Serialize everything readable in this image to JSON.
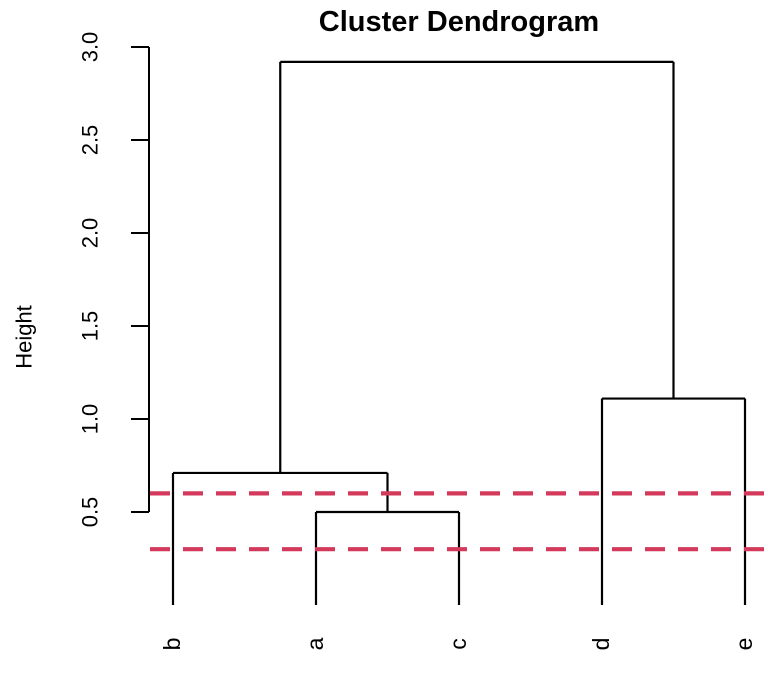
{
  "chart_data": {
    "type": "dendrogram",
    "title": "Cluster Dendrogram",
    "ylabel": "Height",
    "xlabel": "",
    "leaves": [
      "b",
      "a",
      "c",
      "d",
      "e"
    ],
    "tree": {
      "height": 2.92,
      "children": [
        {
          "height": 0.71,
          "children": [
            {
              "leaf": "b"
            },
            {
              "height": 0.5,
              "children": [
                {
                  "leaf": "a"
                },
                {
                  "leaf": "c"
                }
              ]
            }
          ]
        },
        {
          "height": 1.11,
          "children": [
            {
              "leaf": "d"
            },
            {
              "leaf": "e"
            }
          ]
        }
      ]
    },
    "merges": [
      {
        "members": [
          "a",
          "c"
        ],
        "height": 0.5
      },
      {
        "members": [
          "b",
          "(a,c)"
        ],
        "height": 0.71
      },
      {
        "members": [
          "d",
          "e"
        ],
        "height": 1.11
      },
      {
        "members": [
          "(b,a,c)",
          "(d,e)"
        ],
        "height": 2.92
      }
    ],
    "ylim": [
      0,
      3.0
    ],
    "yticks": [
      0.5,
      1.0,
      1.5,
      2.0,
      2.5,
      3.0
    ],
    "ytick_labels": [
      "0.5",
      "1.0",
      "1.5",
      "2.0",
      "2.5",
      "3.0"
    ],
    "cut_lines": {
      "values": [
        0.6,
        0.3
      ],
      "style": "dashed",
      "color": "#D3395A"
    },
    "line_color": "#000000",
    "background": "#FFFFFF",
    "grid": false,
    "legend": "none"
  }
}
